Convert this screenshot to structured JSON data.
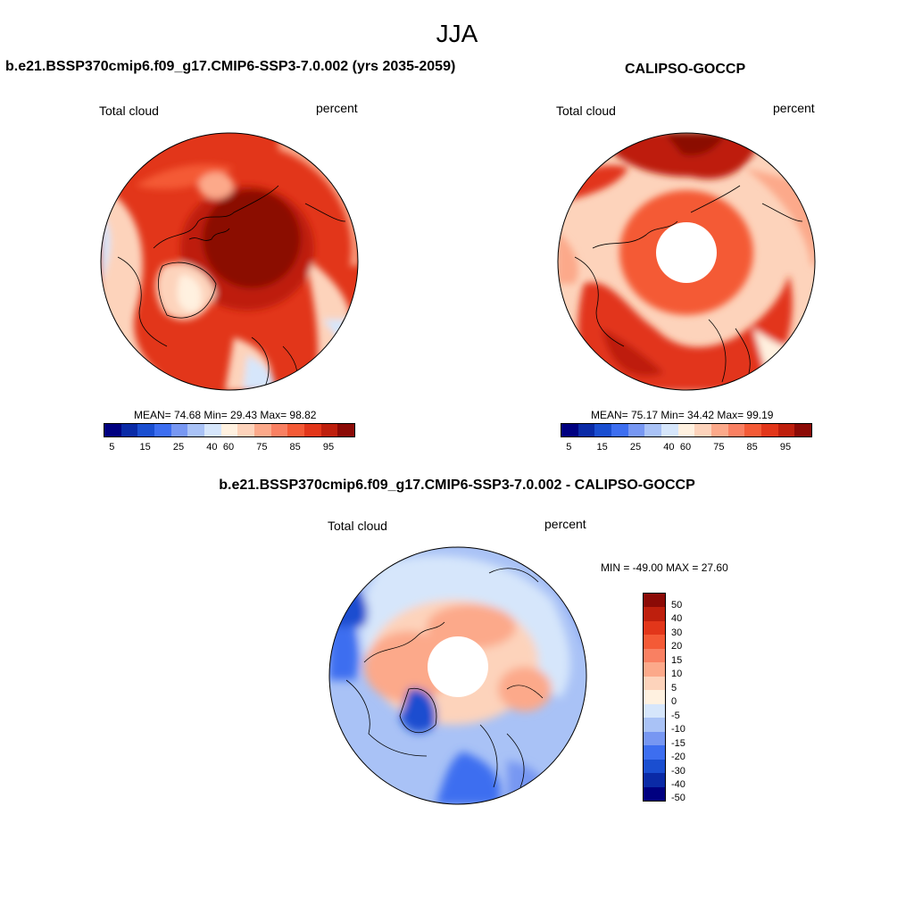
{
  "figure": {
    "season": "JJA"
  },
  "panels": [
    {
      "title": "b.e21.BSSP370cmip6.f09_g17.CMIP6-SSP3-7.0.002 (yrs 2035-2059)",
      "variable": "Total cloud",
      "units": "percent",
      "stats": "MEAN=  74.68  Min=  29.43  Max=  98.82"
    },
    {
      "title": "CALIPSO-GOCCP",
      "variable": "Total cloud",
      "units": "percent",
      "stats": "MEAN=  75.17  Min=  34.42  Max=  99.19"
    },
    {
      "title": "b.e21.BSSP370cmip6.f09_g17.CMIP6-SSP3-7.0.002 - CALIPSO-GOCCP",
      "variable": "Total cloud",
      "units": "percent",
      "stats": "MIN = -49.00 MAX =  27.60"
    }
  ],
  "colorbar_abs": {
    "colors": [
      "#000080",
      "#0a2aa6",
      "#1a4ed0",
      "#3d6ef0",
      "#7797f2",
      "#a9c2f6",
      "#d6e6fb",
      "#fff1e0",
      "#fdd3bb",
      "#fca98a",
      "#f98062",
      "#f45a36",
      "#e2361a",
      "#be1f0d",
      "#8b0a06"
    ],
    "labels": [
      "5",
      "15",
      "25",
      "40",
      "60",
      "75",
      "85",
      "95"
    ]
  },
  "colorbar_diff": {
    "colors": [
      "#8b0a06",
      "#be1f0d",
      "#e2361a",
      "#f45a36",
      "#f98062",
      "#fca98a",
      "#fdd3bb",
      "#fff1e0",
      "#d6e6fb",
      "#a9c2f6",
      "#7797f2",
      "#3d6ef0",
      "#1a4ed0",
      "#0a2aa6",
      "#000080"
    ],
    "labels": [
      "50",
      "40",
      "30",
      "20",
      "15",
      "10",
      "5",
      "0",
      "-5",
      "-10",
      "-15",
      "-20",
      "-30",
      "-40",
      "-50"
    ]
  }
}
